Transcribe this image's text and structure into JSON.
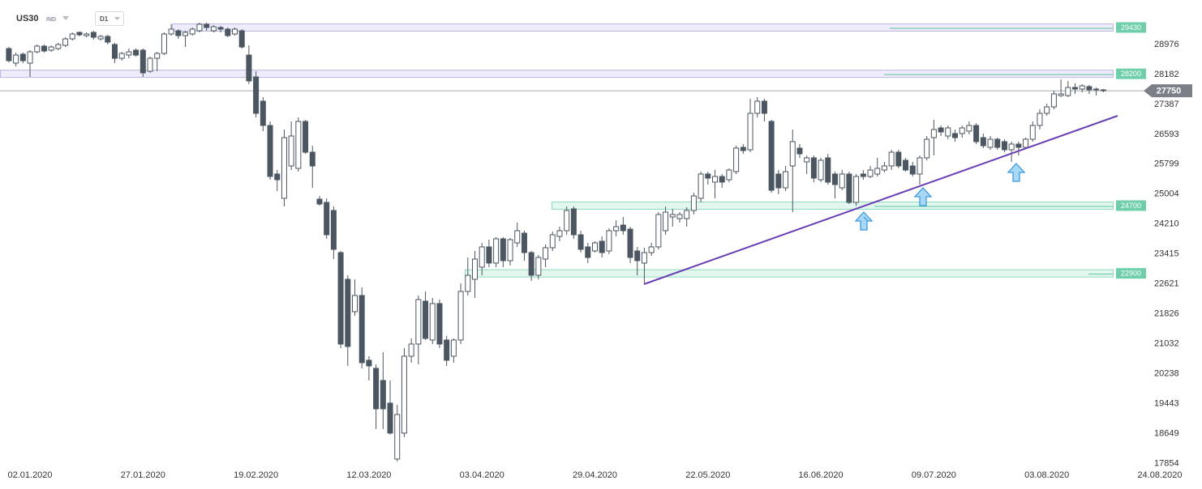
{
  "toolbar": {
    "symbol": "US30",
    "market": "IND",
    "timeframe": "D1"
  },
  "chart_data": {
    "type": "candlestick",
    "categories": [
      null,
      null,
      null,
      "02.01.2020",
      null,
      null,
      null,
      null,
      null,
      null,
      null,
      null,
      null,
      null,
      null,
      null,
      null,
      null,
      null,
      "27.01.2020",
      null,
      null,
      null,
      null,
      null,
      null,
      null,
      null,
      null,
      null,
      null,
      null,
      null,
      null,
      null,
      "19.02.2020",
      null,
      null,
      null,
      null,
      null,
      null,
      null,
      null,
      null,
      null,
      null,
      null,
      null,
      null,
      null,
      "12.03.2020",
      null,
      null,
      null,
      null,
      null,
      null,
      null,
      null,
      null,
      null,
      null,
      null,
      null,
      null,
      null,
      "03.04.2020",
      null,
      null,
      null,
      null,
      null,
      null,
      null,
      null,
      null,
      null,
      null,
      null,
      null,
      null,
      null,
      "29.04.2020",
      null,
      null,
      null,
      null,
      null,
      null,
      null,
      null,
      null,
      null,
      null,
      null,
      null,
      null,
      null,
      "22.05.2020",
      null,
      null,
      null,
      null,
      null,
      null,
      null,
      null,
      null,
      null,
      null,
      null,
      null,
      null,
      null,
      "16.06.2020",
      null,
      null,
      null,
      null,
      null,
      null,
      null,
      null,
      null,
      null,
      null,
      null,
      null,
      null,
      null,
      "09.07.2020",
      null,
      null,
      null,
      null,
      null,
      null,
      null,
      null,
      null,
      null,
      null,
      null,
      null,
      null,
      null,
      "03.08.2020",
      null,
      null,
      null,
      null,
      null,
      null,
      null,
      null,
      null,
      null,
      null,
      null,
      null,
      null,
      null,
      "24.08.2020"
    ],
    "open": [
      28870,
      28483,
      28720,
      28483,
      28784,
      28935,
      28827,
      28870,
      28956,
      29128,
      29300,
      29214,
      29300,
      29128,
      29193,
      28978,
      28612,
      28698,
      28827,
      28827,
      28268,
      28612,
      28741,
      29257,
      29343,
      29214,
      29257,
      29343,
      29515,
      29343,
      29429,
      29386,
      29257,
      29343,
      28698,
      28118,
      27473,
      26828,
      25538,
      24893,
      25753,
      25688,
      26935,
      26118,
      24871,
      24785,
      24570,
      23452,
      22743,
      21883,
      22313,
      20593,
      20378,
      20055,
      19453,
      17970,
      18658,
      20700,
      21023,
      22162,
      21130,
      22098,
      21130,
      20700,
      21130,
      22420,
      22743,
      23065,
      23603,
      23173,
      23818,
      23237,
      23710,
      23968,
      23452,
      22850,
      23280,
      23581,
      23882,
      24033,
      24613,
      23925,
      23603,
      23495,
      23753,
      23495,
      24033,
      24183,
      24076,
      23495,
      23173,
      23452,
      23603,
      24033,
      24398,
      24355,
      24355,
      24570,
      24893,
      25538,
      25323,
      25473,
      25387,
      25602,
      26247,
      26183,
      27150,
      27473,
      26935,
      25538,
      25172,
      25753,
      26226,
      25860,
      25968,
      25387,
      25968,
      25538,
      25172,
      25538,
      24785,
      25538,
      25473,
      25538,
      25645,
      25753,
      26118,
      25903,
      25753,
      25538,
      25968,
      26505,
      26763,
      26548,
      26613,
      26613,
      26677,
      26828,
      26505,
      26247,
      26462,
      26398,
      26183,
      26333,
      26247,
      26462,
      26828,
      27150,
      27322,
      27623,
      27623,
      27838,
      27795,
      27860,
      27795,
      27774,
      null,
      null,
      null,
      null,
      null,
      null,
      null,
      null
    ],
    "high": [
      28913,
      28763,
      28763,
      28827,
      28978,
      28978,
      28956,
      29021,
      29171,
      29300,
      29322,
      29300,
      29343,
      29236,
      29236,
      29021,
      28784,
      28870,
      28870,
      28870,
      28655,
      28784,
      29300,
      29515,
      29386,
      29343,
      29429,
      29558,
      29558,
      29494,
      29472,
      29429,
      29429,
      29386,
      28956,
      28268,
      27580,
      26935,
      25645,
      26720,
      26935,
      27043,
      26978,
      26290,
      24957,
      24893,
      24678,
      23495,
      22850,
      22743,
      22528,
      20700,
      20485,
      20808,
      20055,
      19410,
      20915,
      21173,
      22313,
      22420,
      22248,
      22205,
      21238,
      21173,
      22635,
      23323,
      23495,
      23710,
      23796,
      23861,
      23861,
      23839,
      24248,
      24033,
      23495,
      23388,
      23667,
      24011,
      24140,
      24678,
      24678,
      24033,
      23710,
      23753,
      23882,
      24097,
      24312,
      24398,
      24140,
      23603,
      23581,
      23710,
      24527,
      24678,
      24613,
      24527,
      24656,
      25043,
      25602,
      25602,
      25645,
      25538,
      25688,
      26290,
      26333,
      27537,
      27580,
      27537,
      26978,
      25645,
      25753,
      26720,
      26333,
      26032,
      26032,
      25968,
      26075,
      25602,
      25645,
      25602,
      25538,
      25645,
      25753,
      25968,
      25860,
      26183,
      26183,
      25968,
      25860,
      26032,
      26548,
      26978,
      26828,
      26828,
      26720,
      26828,
      26935,
      26892,
      26613,
      26548,
      26505,
      26462,
      26398,
      26398,
      26505,
      26935,
      27258,
      27408,
      27752,
      28053,
      28010,
      27946,
      27924,
      27903,
      27838,
      27795,
      null,
      null,
      null,
      null,
      null,
      null,
      null,
      null
    ],
    "low": [
      28505,
      28397,
      28483,
      28118,
      28741,
      28763,
      28784,
      28827,
      28913,
      29085,
      29193,
      29171,
      29107,
      29085,
      28978,
      28483,
      28548,
      28612,
      28655,
      28118,
      28225,
      28268,
      28698,
      29214,
      29128,
      28913,
      29214,
      29300,
      29343,
      29300,
      29300,
      29171,
      29214,
      28870,
      27924,
      27043,
      26677,
      25387,
      25086,
      24678,
      25645,
      25602,
      26075,
      25172,
      24699,
      23818,
      23280,
      20915,
      20442,
      21775,
      20378,
      20055,
      18765,
      18765,
      18615,
      17905,
      18550,
      20528,
      20485,
      21130,
      21023,
      20915,
      20442,
      20528,
      21023,
      22313,
      22248,
      22850,
      23065,
      23065,
      23065,
      23108,
      23603,
      23237,
      22700,
      22743,
      23065,
      23495,
      23753,
      23925,
      23818,
      23452,
      23173,
      23452,
      23323,
      23409,
      23882,
      23925,
      23173,
      22850,
      22635,
      23366,
      23538,
      23925,
      24140,
      24248,
      24140,
      24463,
      24785,
      25258,
      24893,
      25172,
      25323,
      25538,
      26075,
      26118,
      27043,
      26935,
      25043,
      25000,
      25086,
      24527,
      25968,
      25538,
      25323,
      25323,
      25258,
      24893,
      25108,
      24742,
      24699,
      25387,
      25430,
      25473,
      25580,
      25645,
      25688,
      25602,
      25473,
      25258,
      25903,
      26032,
      26548,
      26462,
      26398,
      26505,
      26591,
      26333,
      26226,
      26183,
      26183,
      26118,
      25860,
      26032,
      26204,
      26398,
      26720,
      27086,
      27258,
      27580,
      27580,
      27666,
      27709,
      27666,
      27623,
      27709,
      null,
      null,
      null,
      null,
      null,
      null,
      null,
      null
    ],
    "close": [
      28548,
      28698,
      28548,
      28784,
      28935,
      28806,
      28913,
      28978,
      29128,
      29257,
      29236,
      29257,
      29171,
      29193,
      29042,
      28612,
      28741,
      28784,
      28698,
      28225,
      28612,
      28741,
      29257,
      29386,
      29214,
      29300,
      29386,
      29515,
      29429,
      29450,
      29386,
      29214,
      29386,
      28913,
      28010,
      27150,
      26828,
      25473,
      25387,
      26505,
      26548,
      26935,
      26118,
      25753,
      24742,
      23925,
      23538,
      21023,
      20958,
      22313,
      20528,
      20442,
      19303,
      19303,
      18658,
      19152,
      20700,
      21023,
      22205,
      21173,
      22098,
      21023,
      20593,
      21130,
      22420,
      22850,
      23280,
      23603,
      23173,
      23818,
      23237,
      23796,
      24033,
      23452,
      22850,
      23323,
      23581,
      23925,
      24033,
      24570,
      23925,
      23538,
      23323,
      23710,
      23452,
      24033,
      24140,
      24033,
      23323,
      23237,
      23452,
      23603,
      24463,
      24527,
      24463,
      24463,
      24570,
      24957,
      25538,
      25430,
      25473,
      25323,
      25645,
      26226,
      26161,
      27150,
      27473,
      27150,
      25108,
      25172,
      25602,
      26398,
      26075,
      25968,
      25430,
      25903,
      25323,
      25258,
      25538,
      24785,
      25473,
      25473,
      25645,
      25688,
      25753,
      26118,
      25753,
      25645,
      25538,
      25968,
      26462,
      26720,
      26656,
      26763,
      26505,
      26763,
      26828,
      26398,
      26290,
      26462,
      26247,
      26183,
      26333,
      26247,
      26462,
      26828,
      27150,
      27322,
      27666,
      27666,
      27838,
      27795,
      27881,
      27774,
      27774,
      27750,
      null,
      null,
      null,
      null,
      null,
      null,
      null,
      null
    ],
    "up_color": "#ffffff",
    "down_color": "#4b5661",
    "ylim": [
      17797,
      30160
    ],
    "yticks": [
      17854,
      18649,
      19443,
      20238,
      21032,
      21826,
      22621,
      23415,
      24210,
      25004,
      25799,
      26593,
      27387,
      28182,
      28976
    ],
    "levels": [
      29430,
      28200,
      24700,
      22900
    ],
    "last_price": 27750
  }
}
